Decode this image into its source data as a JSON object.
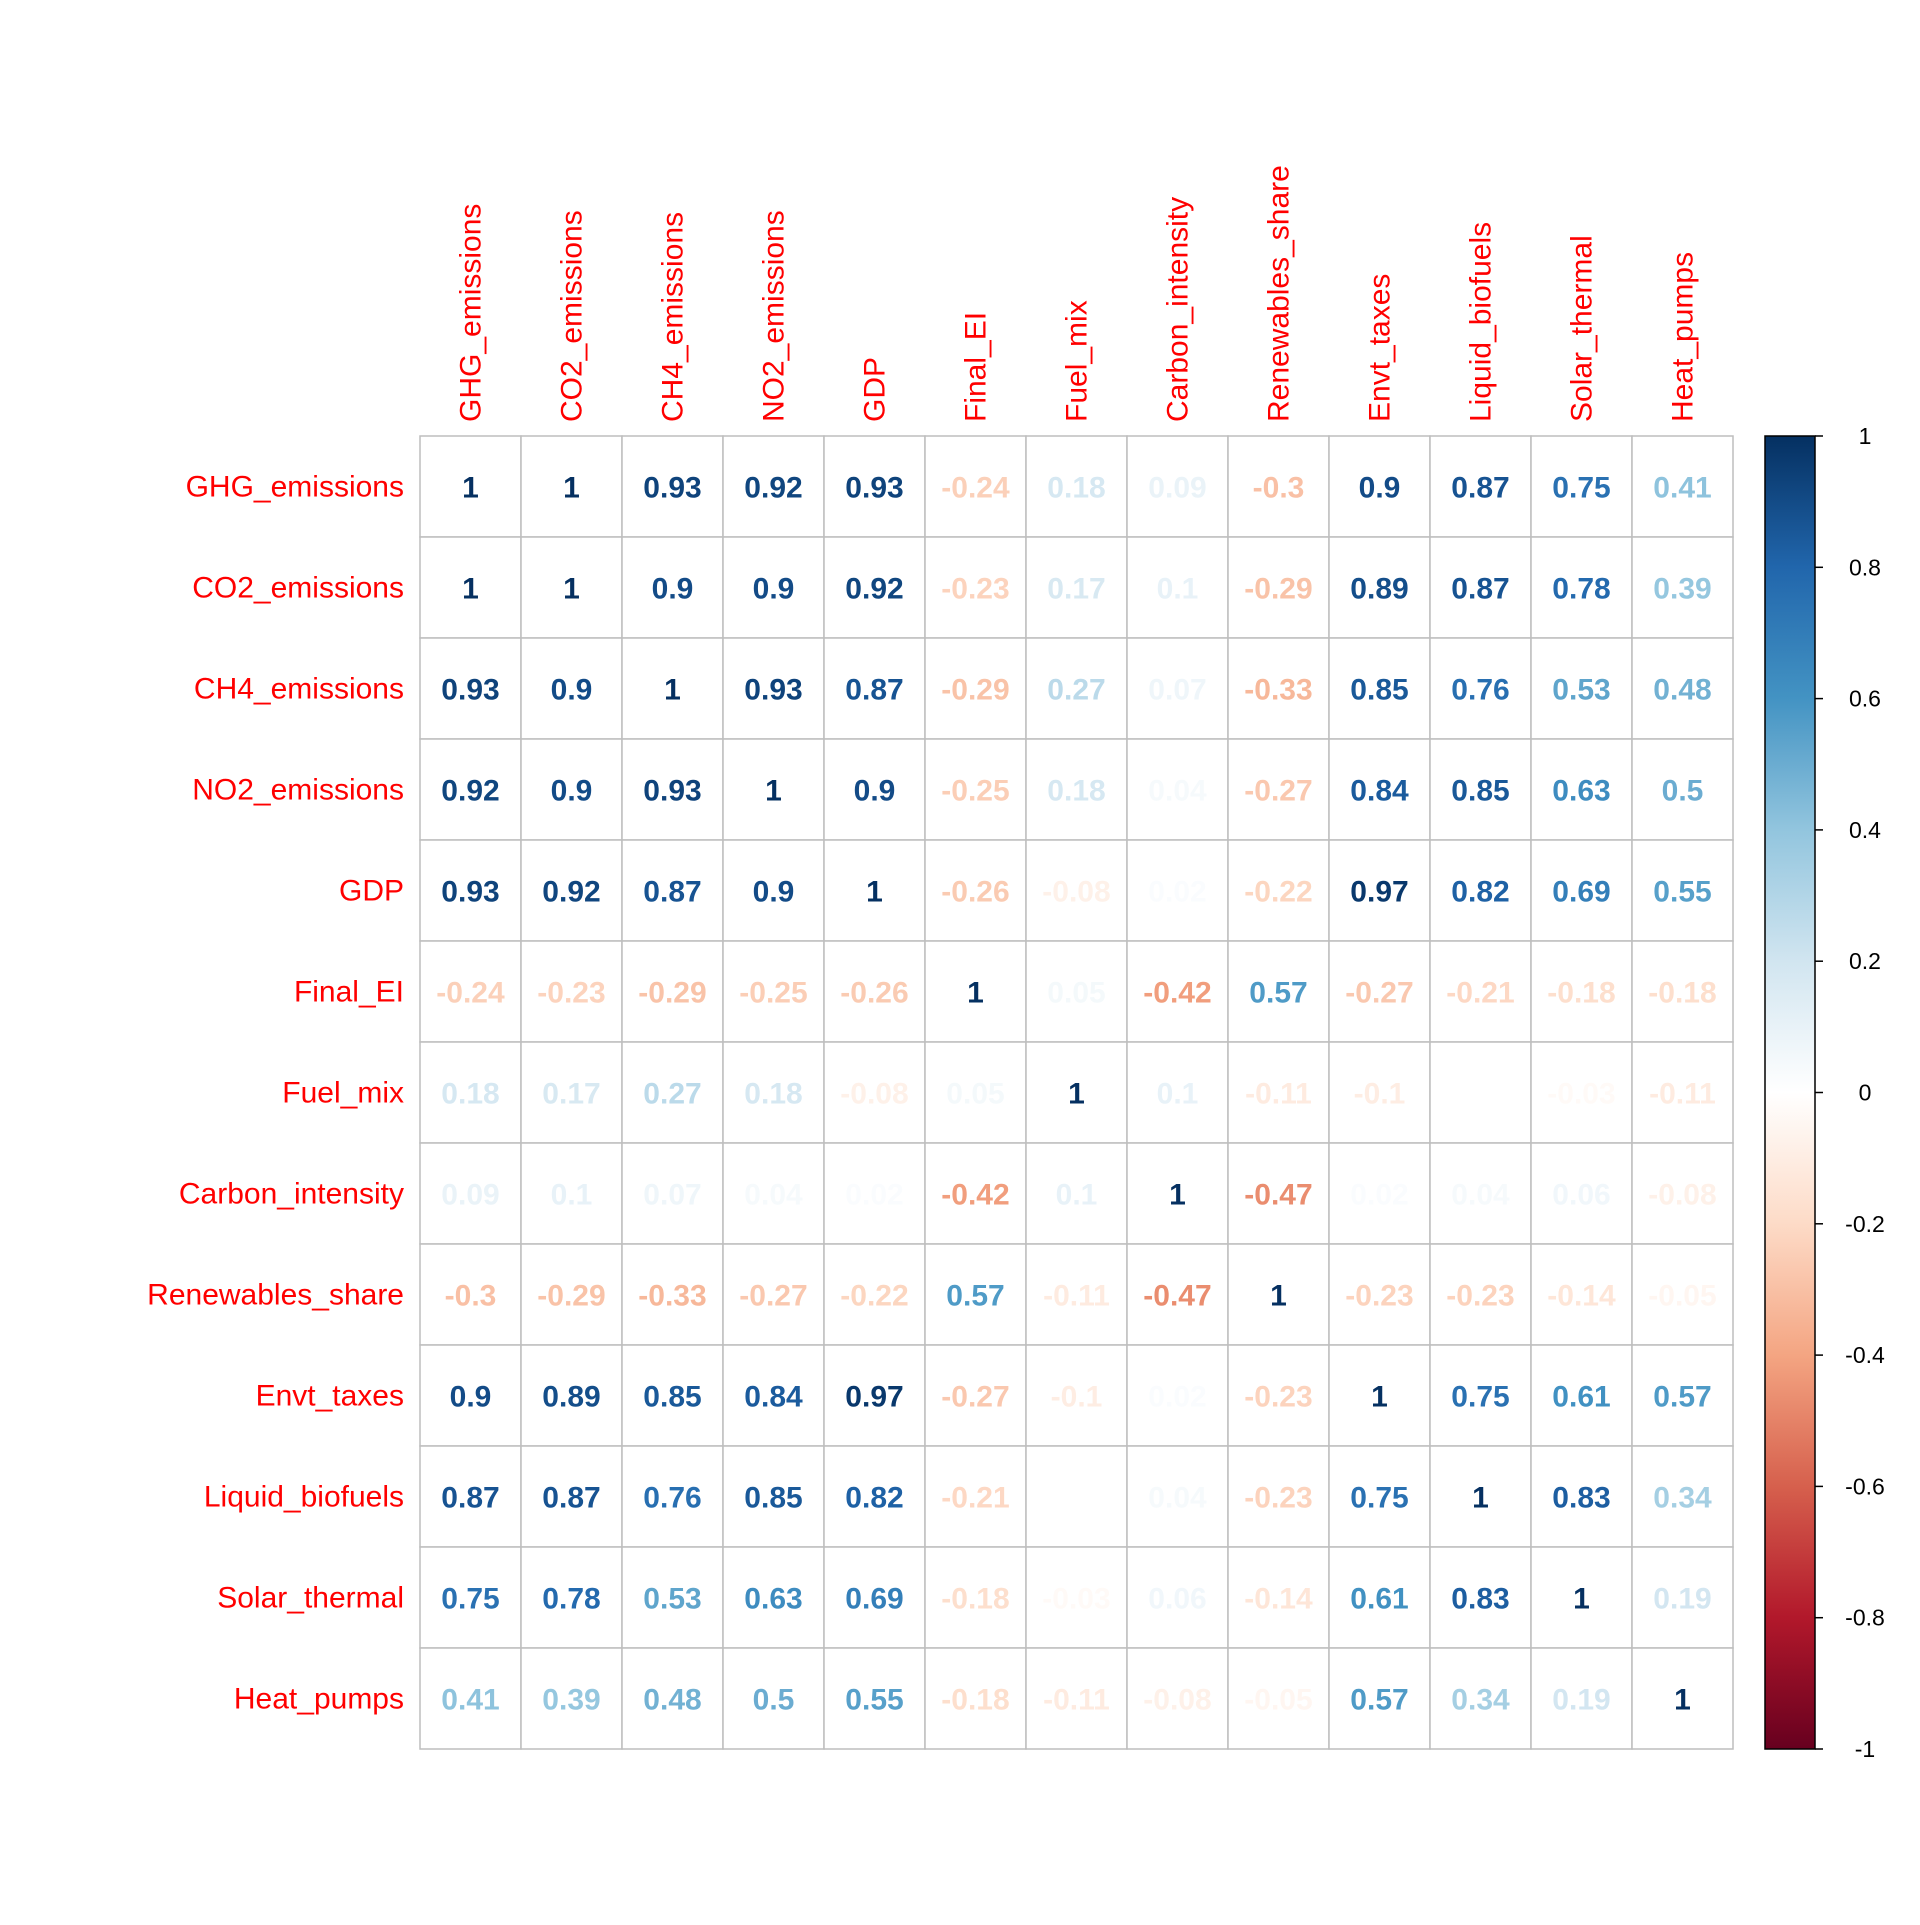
{
  "chart_data": {
    "type": "heatmap",
    "title": "",
    "variables": [
      "GHG_emissions",
      "CO2_emissions",
      "CH4_emissions",
      "NO2_emissions",
      "GDP",
      "Final_EI",
      "Fuel_mix",
      "Carbon_intensity",
      "Renewables_share",
      "Envt_taxes",
      "Liquid_biofuels",
      "Solar_thermal",
      "Heat_pumps"
    ],
    "matrix": [
      [
        1,
        1,
        0.93,
        0.92,
        0.93,
        -0.24,
        0.18,
        0.09,
        -0.3,
        0.9,
        0.87,
        0.75,
        0.41
      ],
      [
        1,
        1,
        0.9,
        0.9,
        0.92,
        -0.23,
        0.17,
        0.1,
        -0.29,
        0.89,
        0.87,
        0.78,
        0.39
      ],
      [
        0.93,
        0.9,
        1,
        0.93,
        0.87,
        -0.29,
        0.27,
        0.07,
        -0.33,
        0.85,
        0.76,
        0.53,
        0.48
      ],
      [
        0.92,
        0.9,
        0.93,
        1,
        0.9,
        -0.25,
        0.18,
        0.04,
        -0.27,
        0.84,
        0.85,
        0.63,
        0.5
      ],
      [
        0.93,
        0.92,
        0.87,
        0.9,
        1,
        -0.26,
        -0.08,
        0.02,
        -0.22,
        0.97,
        0.82,
        0.69,
        0.55
      ],
      [
        -0.24,
        -0.23,
        -0.29,
        -0.25,
        -0.26,
        1,
        0.05,
        -0.42,
        0.57,
        -0.27,
        -0.21,
        -0.18,
        -0.18
      ],
      [
        0.18,
        0.17,
        0.27,
        0.18,
        -0.08,
        0.05,
        1,
        0.1,
        -0.11,
        -0.1,
        0,
        -0.03,
        -0.11
      ],
      [
        0.09,
        0.1,
        0.07,
        0.04,
        0.02,
        -0.42,
        0.1,
        1,
        -0.47,
        0.02,
        0.04,
        0.06,
        -0.08
      ],
      [
        -0.3,
        -0.29,
        -0.33,
        -0.27,
        -0.22,
        0.57,
        -0.11,
        -0.47,
        1,
        -0.23,
        -0.23,
        -0.14,
        -0.05
      ],
      [
        0.9,
        0.89,
        0.85,
        0.84,
        0.97,
        -0.27,
        -0.1,
        0.02,
        -0.23,
        1,
        0.75,
        0.61,
        0.57
      ],
      [
        0.87,
        0.87,
        0.76,
        0.85,
        0.82,
        -0.21,
        0,
        0.04,
        -0.23,
        0.75,
        1,
        0.83,
        0.34
      ],
      [
        0.75,
        0.78,
        0.53,
        0.63,
        0.69,
        -0.18,
        -0.03,
        0.06,
        -0.14,
        0.61,
        0.83,
        1,
        0.19
      ],
      [
        0.41,
        0.39,
        0.48,
        0.5,
        0.55,
        -0.18,
        -0.11,
        -0.08,
        -0.05,
        0.57,
        0.34,
        0.19,
        1
      ]
    ],
    "color_scale": {
      "range": [
        -1,
        1
      ],
      "ticks": [
        1,
        0.8,
        0.6,
        0.4,
        0.2,
        0,
        -0.2,
        -0.4,
        -0.6,
        -0.8,
        -1
      ],
      "tick_labels": [
        "1",
        "0.8",
        "0.6",
        "0.4",
        "0.2",
        "0",
        "-0.2",
        "-0.4",
        "-0.6",
        "-0.8",
        "-1"
      ],
      "colors": [
        "#67001F",
        "#B2182B",
        "#D6604D",
        "#F4A582",
        "#FDDBC7",
        "#FFFFFF",
        "#D1E5F0",
        "#92C5DE",
        "#4393C3",
        "#2166AC",
        "#053061"
      ]
    },
    "label_color": "#FF0000",
    "grid_color": "#BEBEBE",
    "grid": true,
    "legend_position": "right"
  }
}
